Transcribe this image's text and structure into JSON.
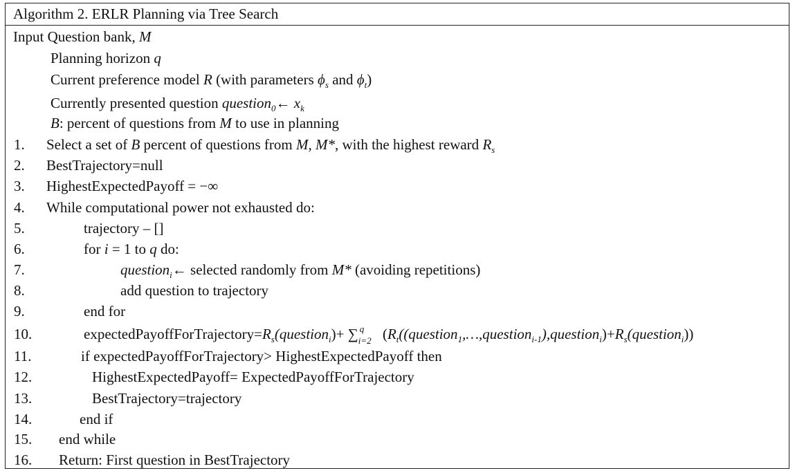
{
  "title": "Algorithm 2. ERLR Planning via Tree Search",
  "input": {
    "label": "Input Question bank, ",
    "bank_var": "M",
    "horizon_text": "Planning horizon ",
    "horizon_var": "q",
    "model_text_a": "Current preference model ",
    "model_var": "R",
    "model_text_b": " (with parameters ",
    "phi": "ϕ",
    "sub_s": "s",
    "and": " and ",
    "sub_t": "t",
    "close_paren": ")",
    "current_text": "Currently presented question ",
    "question": "question",
    "sub_0": "0",
    "arrow_x": "← x",
    "sub_k": "k",
    "b_var": "B",
    "b_text_a": ": percent of questions from ",
    "b_text_b": " to use in planning"
  },
  "steps": {
    "n1": "1.",
    "n2": "2.",
    "n3": "3.",
    "n4": "4.",
    "n5": "5.",
    "n6": "6.",
    "n7": "7.",
    "n8": "8.",
    "n9": "9.",
    "n10": "10.",
    "n11": "11.",
    "n12": "12.",
    "n13": "13.",
    "n14": "14.",
    "n15": "15.",
    "n16": "16.",
    "s1_a": "Select a set of ",
    "s1_b": " percent of questions from ",
    "s1_c": "M, M*",
    "s1_d": ", with the highest reward ",
    "s1_r": "R",
    "s1_sub": "s",
    "s2": "BestTrajectory=null",
    "s3": "HighestExpectedPayoff = −∞",
    "s4": "While computational power not exhausted do:",
    "s5": "trajectory – []",
    "s6_a": "for ",
    "s6_i": "i",
    "s6_b": " = 1 to ",
    "s6_q": "q",
    "s6_c": " do:",
    "s7_q": "question",
    "s7_sub": "i",
    "s7_a": "← selected randomly from ",
    "s7_m": "M*",
    "s7_b": " (avoiding repetitions)",
    "s8": "add question to trajectory",
    "s9": "end for",
    "s10_a": "expectedPayoffForTrajectory=",
    "s10_r": "R",
    "s10_s": "s",
    "s10_q": "(question",
    "s10_i": "i",
    "s10_close": ")+ ",
    "s10_sum": "∑",
    "s10_up": "q",
    "s10_dn": "i=2",
    "s10_b": "  (",
    "s10_rt": "R",
    "s10_t": "t",
    "s10_c": "((question",
    "s10_1": "1",
    "s10_d": ",…,question",
    "s10_im1": "i-1",
    "s10_e": "),question",
    "s10_i2": "i",
    "s10_f": ")+",
    "s10_r2": "R",
    "s10_s2": "s",
    "s10_g": "(question",
    "s10_i3": "i",
    "s10_h": "))",
    "s11": "if expectedPayoffForTrajectory> HighestExpectedPayoff then",
    "s12": "HighestExpectedPayoff= ExpectedPayoffForTrajectory",
    "s13": "BestTrajectory=trajectory",
    "s14": "end if",
    "s15": "end while",
    "s16": "Return: First question in BestTrajectory"
  }
}
